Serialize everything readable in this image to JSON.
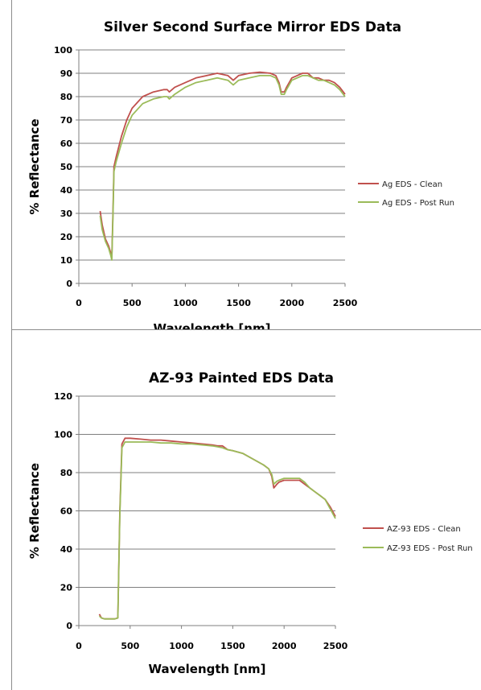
{
  "chart_data": [
    {
      "type": "line",
      "title": "Silver Second Surface Mirror EDS Data",
      "xlabel": "Wavelength [nm]",
      "ylabel": "% Reflectance",
      "xlim": [
        0,
        2500
      ],
      "ylim": [
        0,
        100
      ],
      "xticks": [
        0,
        500,
        1000,
        1500,
        2000,
        2500
      ],
      "yticks": [
        0,
        10,
        20,
        30,
        40,
        50,
        60,
        70,
        80,
        90,
        100
      ],
      "grid": "horizontal",
      "legend_position": "right",
      "series": [
        {
          "name": "Ag EDS - Clean",
          "color": "#c0504d",
          "x": [
            200,
            220,
            250,
            280,
            300,
            310,
            320,
            330,
            350,
            400,
            450,
            500,
            600,
            700,
            800,
            830,
            850,
            900,
            1000,
            1100,
            1200,
            1300,
            1400,
            1450,
            1500,
            1600,
            1700,
            1800,
            1850,
            1880,
            1900,
            1930,
            1950,
            2000,
            2050,
            2100,
            2150,
            2200,
            2250,
            2300,
            2350,
            2400,
            2450,
            2500
          ],
          "y": [
            31,
            25,
            19,
            16,
            13,
            11,
            30,
            50,
            54,
            63,
            70,
            75,
            80,
            82,
            83,
            83,
            82,
            84,
            86,
            88,
            89,
            90,
            89,
            87,
            89,
            90,
            90.5,
            90,
            89,
            86,
            82,
            82,
            84,
            88,
            89,
            90,
            90,
            88,
            88,
            87,
            87,
            86,
            84,
            81
          ]
        },
        {
          "name": "Ag EDS - Post Run",
          "color": "#9bbb59",
          "x": [
            200,
            220,
            250,
            280,
            300,
            310,
            320,
            330,
            350,
            400,
            450,
            500,
            600,
            700,
            800,
            830,
            850,
            900,
            1000,
            1100,
            1200,
            1300,
            1400,
            1450,
            1500,
            1600,
            1700,
            1800,
            1850,
            1880,
            1900,
            1930,
            1950,
            2000,
            2050,
            2100,
            2150,
            2200,
            2250,
            2300,
            2350,
            2400,
            2450,
            2500
          ],
          "y": [
            29,
            23,
            18,
            15,
            12,
            10,
            28,
            48,
            52,
            60,
            67,
            72,
            77,
            79,
            80,
            80,
            79,
            81,
            84,
            86,
            87,
            88,
            87,
            85,
            87,
            88,
            89,
            89,
            88,
            85,
            81,
            81,
            83,
            87,
            88,
            89,
            89,
            88,
            87,
            87,
            86,
            85,
            83,
            80
          ]
        }
      ]
    },
    {
      "type": "line",
      "title": "AZ-93 Painted EDS Data",
      "xlabel": "Wavelength [nm]",
      "ylabel": "% Reflectance",
      "xlim": [
        0,
        2500
      ],
      "ylim": [
        0,
        120
      ],
      "xticks": [
        0,
        500,
        1000,
        1500,
        2000,
        2500
      ],
      "yticks": [
        0,
        20,
        40,
        60,
        80,
        100,
        120
      ],
      "grid": "horizontal",
      "legend_position": "right",
      "series": [
        {
          "name": "AZ-93 EDS - Clean",
          "color": "#c0504d",
          "x": [
            200,
            220,
            250,
            300,
            350,
            380,
            400,
            420,
            450,
            500,
            600,
            700,
            800,
            900,
            1000,
            1100,
            1200,
            1300,
            1350,
            1400,
            1450,
            1500,
            1600,
            1700,
            1800,
            1850,
            1880,
            1900,
            1930,
            1950,
            2000,
            2050,
            2100,
            2150,
            2200,
            2250,
            2300,
            2350,
            2400,
            2450,
            2500
          ],
          "y": [
            6,
            4,
            3.5,
            3.5,
            3.5,
            4,
            60,
            95,
            98,
            98,
            97.5,
            97,
            97,
            96.5,
            96,
            95.5,
            95,
            94.5,
            94,
            94,
            92,
            91.5,
            90,
            87,
            84,
            82,
            78,
            72,
            74,
            75,
            76,
            76,
            76,
            76,
            74,
            72,
            70,
            68,
            66,
            62,
            57
          ]
        },
        {
          "name": "AZ-93 EDS - Post Run",
          "color": "#9bbb59",
          "x": [
            200,
            220,
            250,
            300,
            350,
            380,
            400,
            420,
            450,
            500,
            600,
            700,
            800,
            900,
            1000,
            1100,
            1200,
            1300,
            1350,
            1400,
            1450,
            1500,
            1600,
            1700,
            1800,
            1850,
            1880,
            1900,
            1930,
            1950,
            2000,
            2050,
            2100,
            2150,
            2200,
            2250,
            2300,
            2350,
            2400,
            2450,
            2500
          ],
          "y": [
            5,
            4,
            3.5,
            3.5,
            3.5,
            4,
            58,
            93,
            96,
            96,
            96,
            96,
            95.5,
            95.5,
            95,
            95,
            94.5,
            94,
            93.5,
            93,
            92,
            91.5,
            90,
            87,
            84,
            82,
            79,
            74,
            75.5,
            76,
            77,
            77,
            77,
            77,
            75,
            72,
            70,
            68,
            66,
            61,
            56
          ]
        }
      ]
    }
  ]
}
